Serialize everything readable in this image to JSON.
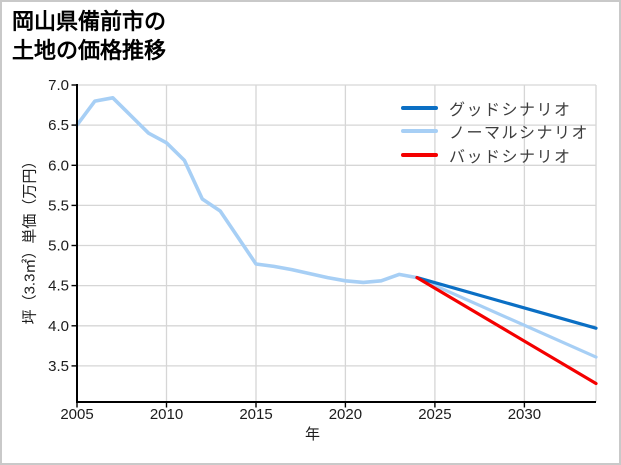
{
  "card": {
    "background": "#ffffff",
    "border_color": "#c9c9c9"
  },
  "title": {
    "line1": "岡山県備前市の",
    "line2": "土地の価格推移"
  },
  "chart_data": {
    "type": "line",
    "title": "岡山県備前市の土地の価格推移",
    "xlabel": "年",
    "ylabel": "坪（3.3㎡）単価（万円）",
    "xlim": [
      2005,
      2034
    ],
    "ylim": [
      3.05,
      7.0
    ],
    "xticks": [
      "2005",
      "2010",
      "2015",
      "2020",
      "2025",
      "2030"
    ],
    "yticks": [
      "7.0",
      "6.5",
      "6.0",
      "5.5",
      "5.0",
      "4.5",
      "4.0",
      "3.5"
    ],
    "grid": true,
    "legend_position": "upper-right",
    "colors": {
      "good": "#0b6fc4",
      "normal": "#a7cff5",
      "bad": "#f40000",
      "grid": "#d6d6d6",
      "axis": "#000000",
      "tick_label": "#1c1c1c",
      "legend_text": "#3d3d3d"
    },
    "series": [
      {
        "id": "history",
        "label": "",
        "color_key": "normal",
        "show_in_legend": false,
        "x": [
          2005,
          2006,
          2007,
          2008,
          2009,
          2010,
          2011,
          2012,
          2013,
          2014,
          2015,
          2016,
          2017,
          2018,
          2019,
          2020,
          2021,
          2022,
          2023,
          2024
        ],
        "values": [
          6.5,
          6.8,
          6.84,
          6.62,
          6.4,
          6.28,
          6.06,
          5.58,
          5.43,
          5.1,
          4.77,
          4.74,
          4.7,
          4.65,
          4.6,
          4.56,
          4.54,
          4.56,
          4.64,
          4.6
        ]
      },
      {
        "id": "good-scenario",
        "label": "グッドシナリオ",
        "color_key": "good",
        "show_in_legend": true,
        "x": [
          2024,
          2034
        ],
        "values": [
          4.6,
          3.97
        ]
      },
      {
        "id": "normal-scenario",
        "label": "ノーマルシナリオ",
        "color_key": "normal",
        "show_in_legend": true,
        "x": [
          2024,
          2034
        ],
        "values": [
          4.6,
          3.61
        ]
      },
      {
        "id": "bad-scenario",
        "label": "バッドシナリオ",
        "color_key": "bad",
        "show_in_legend": true,
        "x": [
          2024,
          2034
        ],
        "values": [
          4.6,
          3.28
        ]
      }
    ]
  }
}
